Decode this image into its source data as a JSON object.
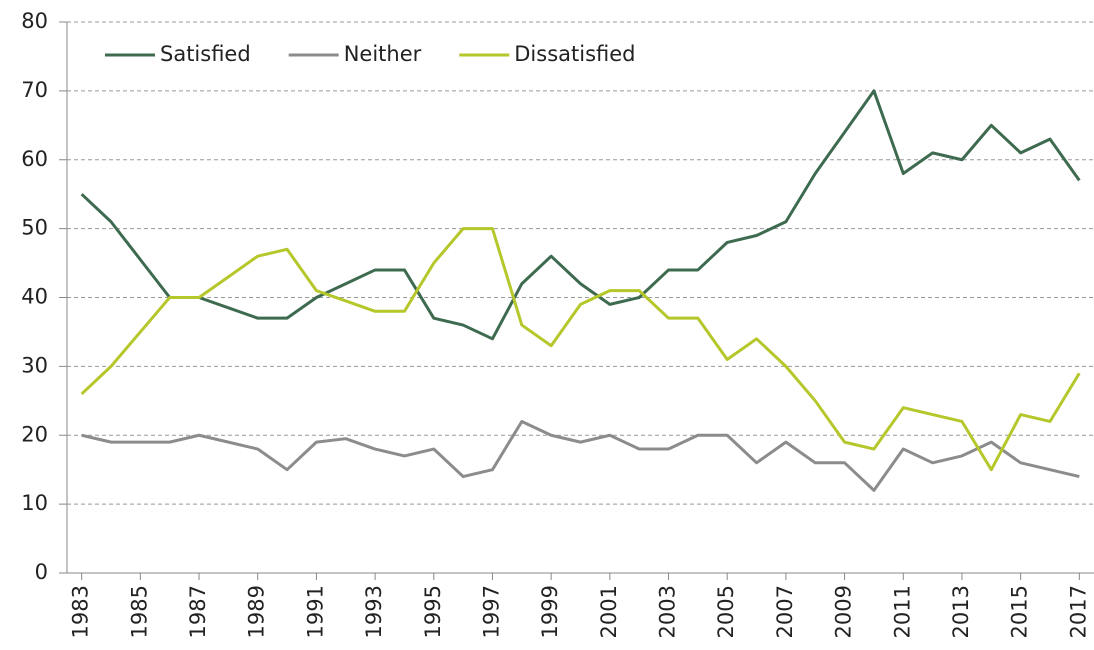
{
  "chart_data": {
    "type": "line",
    "x": [
      1983,
      1984,
      1985,
      1986,
      1987,
      1988,
      1989,
      1990,
      1991,
      1992,
      1993,
      1994,
      1995,
      1996,
      1997,
      1998,
      1999,
      2000,
      2001,
      2002,
      2003,
      2004,
      2005,
      2006,
      2007,
      2008,
      2009,
      2010,
      2011,
      2012,
      2013,
      2014,
      2015,
      2016,
      2017
    ],
    "series": [
      {
        "name": "Satisfied",
        "color": "#3e6b4f",
        "values": [
          55,
          51,
          45.5,
          40,
          40,
          38.5,
          37,
          37,
          40,
          42,
          44,
          44,
          37,
          36,
          34,
          42,
          46,
          42,
          39,
          40,
          44,
          44,
          48,
          49,
          51,
          58,
          64,
          70,
          58,
          61,
          60,
          65,
          61,
          63,
          57
        ]
      },
      {
        "name": "Neither",
        "color": "#8c8c8c",
        "values": [
          20,
          19,
          19,
          19,
          20,
          19,
          18,
          15,
          19,
          19.5,
          18,
          17,
          18,
          14,
          15,
          22,
          20,
          19,
          20,
          18,
          18,
          20,
          20,
          16,
          19,
          16,
          16,
          12,
          18,
          16,
          17,
          19,
          16,
          15,
          14
        ]
      },
      {
        "name": "Dissatisfied",
        "color": "#b5c72a",
        "values": [
          26,
          30,
          35,
          40,
          40,
          43,
          46,
          47,
          41,
          39.5,
          38,
          38,
          45,
          50,
          50,
          36,
          33,
          39,
          41,
          41,
          37,
          37,
          31,
          34,
          30,
          25,
          19,
          18,
          24,
          23,
          22,
          15,
          23,
          22,
          29
        ]
      }
    ],
    "xlim": [
      1982.5,
      2017.5
    ],
    "xticks": [
      1983,
      1985,
      1987,
      1989,
      1991,
      1993,
      1995,
      1997,
      1999,
      2001,
      2003,
      2005,
      2007,
      2009,
      2011,
      2013,
      2015,
      2017
    ],
    "ylim": [
      0,
      80
    ],
    "yticks": [
      0,
      10,
      20,
      30,
      40,
      50,
      60,
      70,
      80
    ],
    "grid": true,
    "legend": "top-left"
  }
}
